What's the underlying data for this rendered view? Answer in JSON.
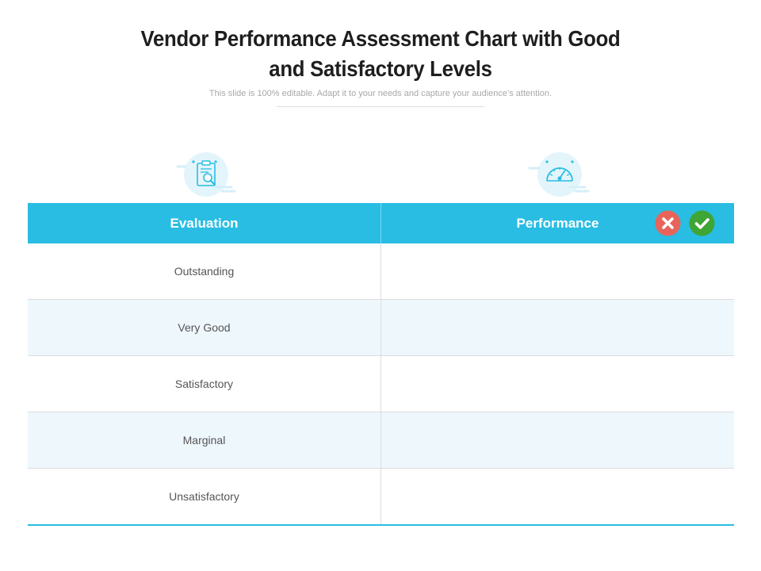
{
  "slide": {
    "title_line1": "Vendor Performance Assessment Chart with Good",
    "title_line2": "and Satisfactory Levels",
    "subtitle": "This slide is 100% editable. Adapt it to your needs and capture your audience’s attention."
  },
  "icons": {
    "evaluation": "clipboard-search-icon",
    "performance": "speedometer-icon",
    "cross": "cross-circle-icon",
    "check": "check-circle-icon"
  },
  "colors": {
    "header": "#29bde3",
    "alt_row": "#eef7fc",
    "cross": "#e8645a",
    "check": "#3fa535"
  },
  "table": {
    "headers": [
      "Evaluation",
      "Performance"
    ],
    "rows": [
      {
        "evaluation": "Outstanding",
        "performance": ""
      },
      {
        "evaluation": "Very Good",
        "performance": ""
      },
      {
        "evaluation": "Satisfactory",
        "performance": ""
      },
      {
        "evaluation": "Marginal",
        "performance": ""
      },
      {
        "evaluation": "Unsatisfactory",
        "performance": ""
      }
    ]
  }
}
